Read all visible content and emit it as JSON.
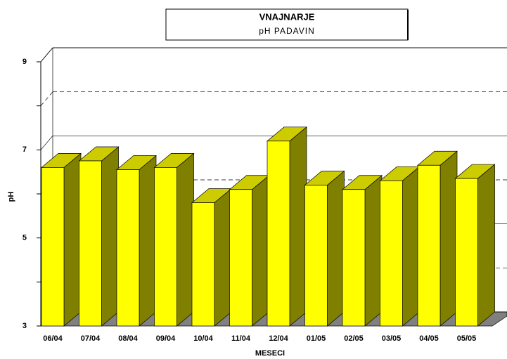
{
  "chart_data": {
    "type": "bar3d",
    "title": "VNAJNARJE",
    "subtitle": "pH PADAVIN",
    "x_label": "MESECI",
    "y_label": "pH",
    "categories": [
      "06/04",
      "07/04",
      "08/04",
      "09/04",
      "10/04",
      "11/04",
      "12/04",
      "01/05",
      "02/05",
      "03/05",
      "04/05",
      "05/05"
    ],
    "values": [
      6.6,
      6.75,
      6.55,
      6.6,
      5.8,
      6.1,
      7.2,
      6.2,
      6.1,
      6.3,
      6.65,
      6.35
    ],
    "color": "#ffff00",
    "ylim": [
      3,
      9
    ],
    "yticks": [
      3,
      5,
      7,
      9
    ],
    "grid": true
  }
}
